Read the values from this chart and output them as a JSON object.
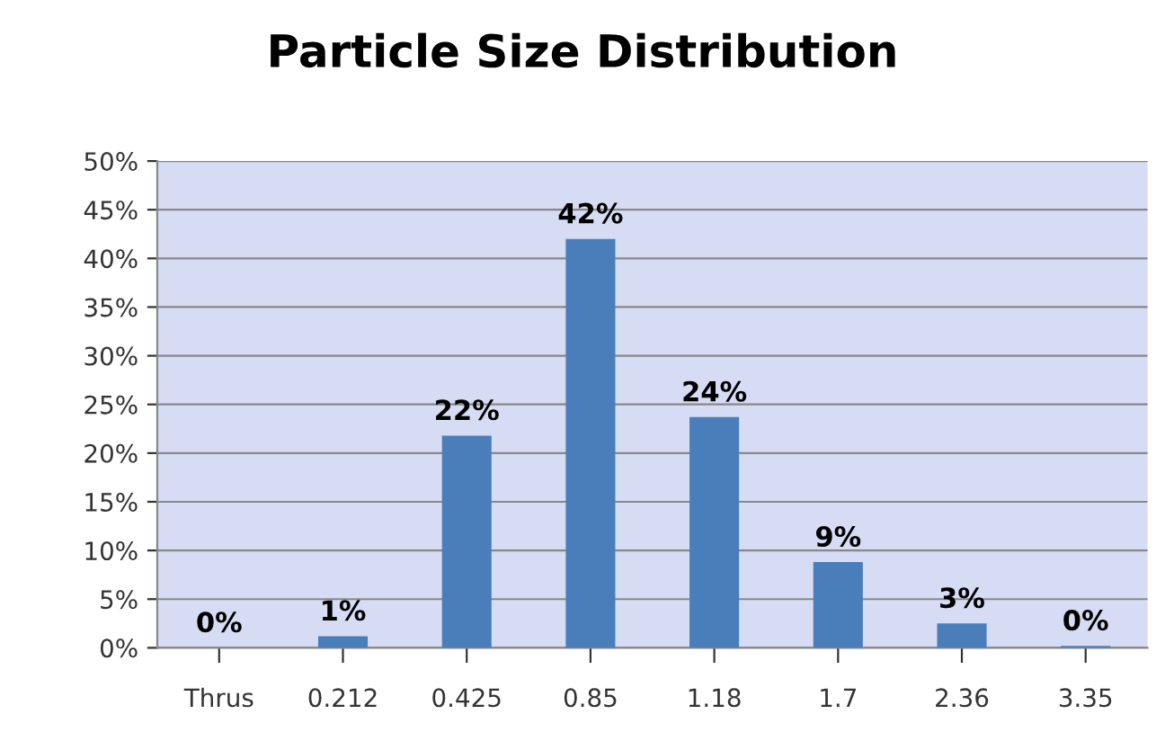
{
  "chart_data": {
    "type": "bar",
    "title": "Particle Size Distribution",
    "categories": [
      "Thrus",
      "0.212",
      "0.425",
      "0.85",
      "1.18",
      "1.7",
      "2.36",
      "3.35"
    ],
    "values": [
      0,
      1.2,
      21.8,
      42,
      23.7,
      8.8,
      2.5,
      0.2
    ],
    "value_labels": [
      "0%",
      "1%",
      "22%",
      "42%",
      "24%",
      "9%",
      "3%",
      "0%"
    ],
    "color": "#4a7ebb",
    "ylim": [
      0,
      50
    ],
    "yticks": [
      {
        "value": 0,
        "label": "0%"
      },
      {
        "value": 5,
        "label": "5%"
      },
      {
        "value": 10,
        "label": "10%"
      },
      {
        "value": 15,
        "label": "15%"
      },
      {
        "value": 20,
        "label": "20%"
      },
      {
        "value": 25,
        "label": "25%"
      },
      {
        "value": 30,
        "label": "30%"
      },
      {
        "value": 35,
        "label": "35%"
      },
      {
        "value": 40,
        "label": "40%"
      },
      {
        "value": 45,
        "label": "45%"
      },
      {
        "value": 50,
        "label": "50%"
      }
    ],
    "grid": "y",
    "legend": false
  }
}
